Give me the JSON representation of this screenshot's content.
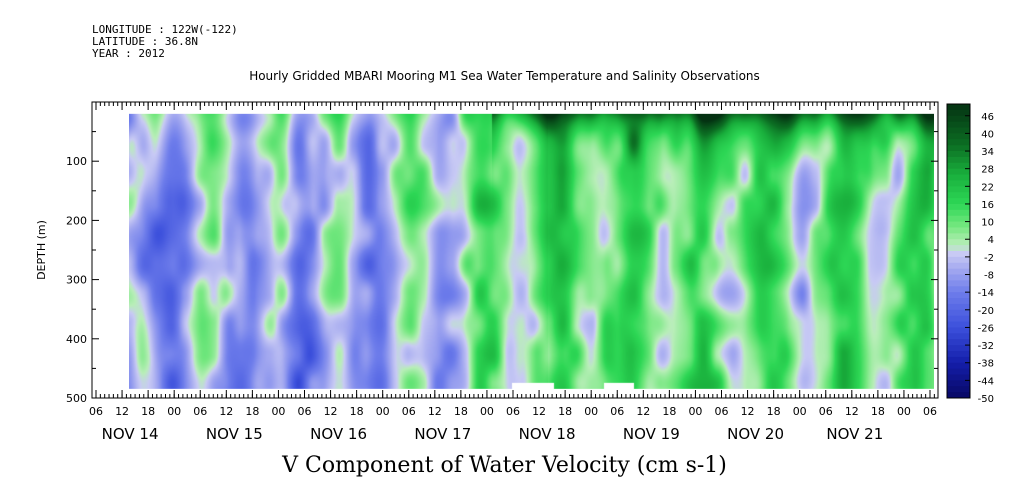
{
  "header": {
    "longitude": "LONGITUDE : 122W(-122)",
    "latitude": "LATITUDE : 36.8N",
    "year": "YEAR : 2012",
    "title": "Hourly Gridded MBARI Mooring M1 Sea Water Temperature and Salinity Observations"
  },
  "caption": "V Component of Water Velocity (cm s-1)",
  "chart_data": {
    "type": "heatmap",
    "title": "Hourly Gridded MBARI Mooring M1 Sea Water Temperature and Salinity Observations",
    "xlabel": "",
    "ylabel": "DEPTH (m)",
    "colorbar_label": "V Component of Water Velocity (cm s-1)",
    "ylim": [
      500,
      0
    ],
    "y_ticks": [
      100,
      200,
      300,
      400,
      500
    ],
    "x_hour_ticks": [
      "06",
      "12",
      "18",
      "00",
      "06",
      "12",
      "18",
      "00",
      "06",
      "12",
      "18",
      "00",
      "06",
      "12",
      "18",
      "00",
      "06",
      "12",
      "18",
      "00",
      "06",
      "12",
      "18",
      "00",
      "06",
      "12",
      "18",
      "00",
      "06",
      "12",
      "18",
      "00",
      "06"
    ],
    "x_day_labels": [
      "NOV 14",
      "NOV 15",
      "NOV 16",
      "NOV 17",
      "NOV 18",
      "NOV 19",
      "NOV 20",
      "NOV 21"
    ],
    "colorbar_ticks": [
      46,
      40,
      34,
      28,
      22,
      16,
      10,
      4,
      -2,
      -8,
      -14,
      -20,
      -26,
      -32,
      -38,
      -44,
      -50
    ],
    "colorbar_range": [
      -50,
      50
    ],
    "colors": {
      "strong_positive": "#063a16",
      "positive": "#1fc94b",
      "weak_positive": "#9ef0a4",
      "near_zero": "#c7c9f2",
      "weak_negative": "#a8acee",
      "negative": "#5b68e6",
      "strong_negative": "#0a0a6a"
    },
    "description_values": {
      "surface_max_cm_s": 46,
      "typical_range_cm_s": [
        -20,
        20
      ]
    }
  }
}
